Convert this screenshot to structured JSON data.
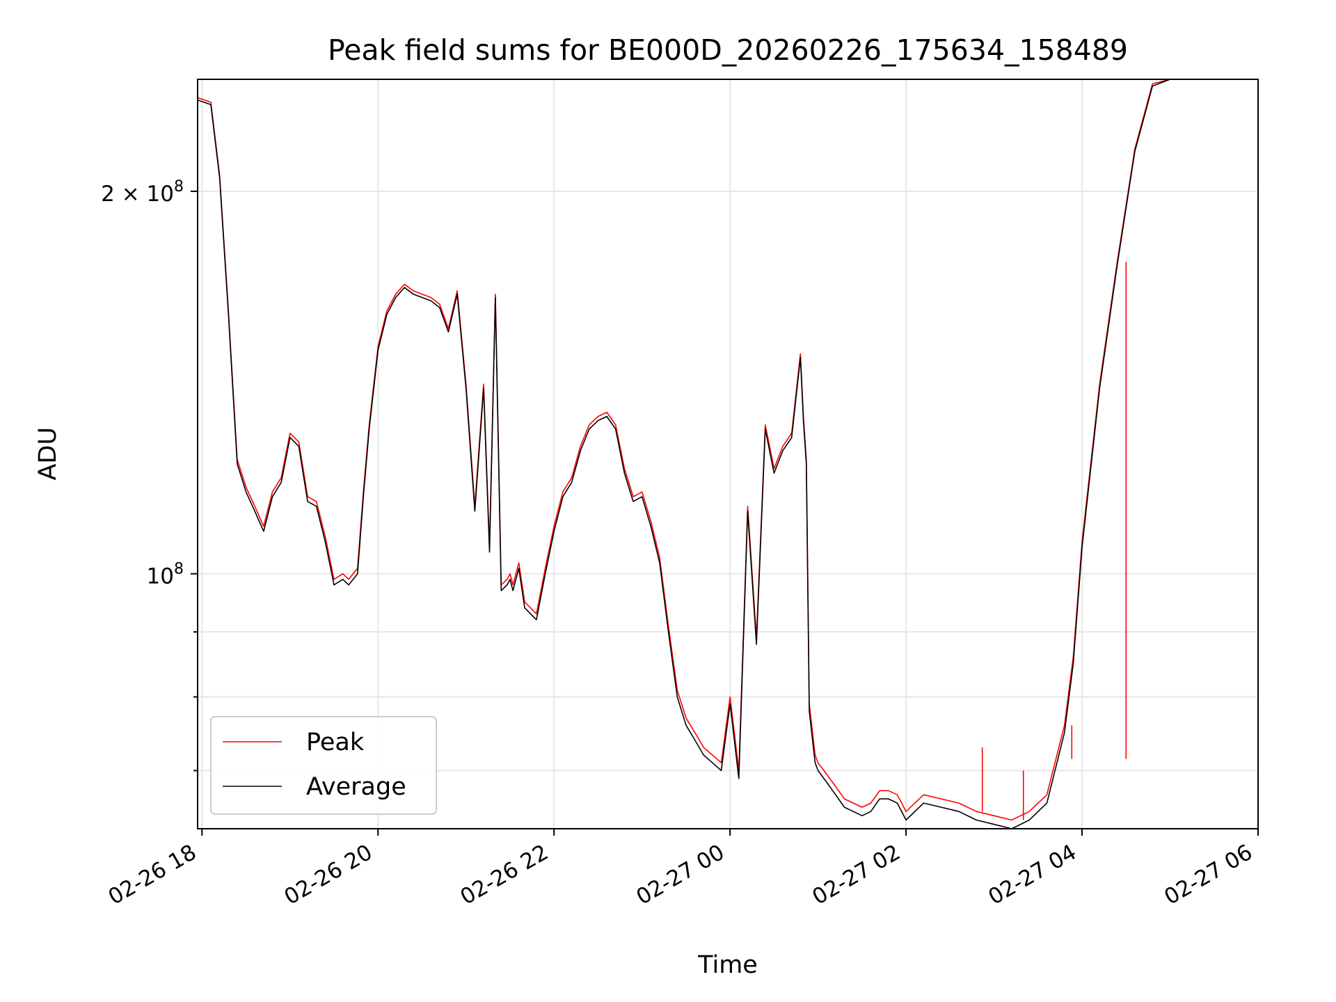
{
  "chart_data": {
    "type": "line",
    "title": "Peak field sums for BE000D_20260226_175634_158489",
    "xlabel": "Time",
    "ylabel": "ADU",
    "yscale": "log",
    "ylim": [
      63000000,
      245000000
    ],
    "xlim": [
      "02-26 17:57",
      "02-27 06:00"
    ],
    "grid": true,
    "legend_position": "lower-left",
    "x_ticks": [
      "02-26 18",
      "02-26 20",
      "02-26 22",
      "02-27 00",
      "02-27 02",
      "02-27 04",
      "02-27 06"
    ],
    "y_ticks": [
      {
        "value": 100000000,
        "label": "10",
        "exp": "8"
      },
      {
        "value": 200000000,
        "label": "2 × 10",
        "exp": "8"
      }
    ],
    "series": [
      {
        "name": "Peak",
        "color": "#ff0000"
      },
      {
        "name": "Average",
        "color": "#000000"
      }
    ],
    "x": [
      "02-26 17:57",
      "02-26 18:06",
      "02-26 18:12",
      "02-26 18:18",
      "02-26 18:24",
      "02-26 18:30",
      "02-26 18:36",
      "02-26 18:42",
      "02-26 18:48",
      "02-26 18:54",
      "02-26 19:00",
      "02-26 19:06",
      "02-26 19:12",
      "02-26 19:18",
      "02-26 19:24",
      "02-26 19:30",
      "02-26 19:36",
      "02-26 19:40",
      "02-26 19:46",
      "02-26 19:50",
      "02-26 19:54",
      "02-26 20:00",
      "02-26 20:06",
      "02-26 20:12",
      "02-26 20:18",
      "02-26 20:24",
      "02-26 20:30",
      "02-26 20:36",
      "02-26 20:42",
      "02-26 20:48",
      "02-26 20:54",
      "02-26 21:00",
      "02-26 21:06",
      "02-26 21:12",
      "02-26 21:16",
      "02-26 21:20",
      "02-26 21:24",
      "02-26 21:28",
      "02-26 21:30",
      "02-26 21:32",
      "02-26 21:36",
      "02-26 21:40",
      "02-26 21:48",
      "02-26 21:54",
      "02-26 22:00",
      "02-26 22:06",
      "02-26 22:12",
      "02-26 22:18",
      "02-26 22:24",
      "02-26 22:30",
      "02-26 22:36",
      "02-26 22:42",
      "02-26 22:48",
      "02-26 22:54",
      "02-26 23:00",
      "02-26 23:06",
      "02-26 23:12",
      "02-26 23:18",
      "02-26 23:24",
      "02-26 23:30",
      "02-26 23:36",
      "02-26 23:42",
      "02-26 23:48",
      "02-26 23:54",
      "02-27 00:00",
      "02-27 00:06",
      "02-27 00:12",
      "02-27 00:18",
      "02-27 00:24",
      "02-27 00:30",
      "02-27 00:36",
      "02-27 00:42",
      "02-27 00:48",
      "02-27 00:50",
      "02-27 00:52",
      "02-27 00:54",
      "02-27 00:58",
      "02-27 01:00",
      "02-27 01:04",
      "02-27 01:06",
      "02-27 01:12",
      "02-27 01:18",
      "02-27 01:24",
      "02-27 01:30",
      "02-27 01:36",
      "02-27 01:42",
      "02-27 01:48",
      "02-27 01:54",
      "02-27 02:00",
      "02-27 02:12",
      "02-27 02:24",
      "02-27 02:36",
      "02-27 02:48",
      "02-27 03:00",
      "02-27 03:12",
      "02-27 03:24",
      "02-27 03:36",
      "02-27 03:48",
      "02-27 03:54",
      "02-27 04:00",
      "02-27 04:12",
      "02-27 04:24",
      "02-27 04:36",
      "02-27 04:48",
      "02-27 05:00",
      "02-27 05:06",
      "02-27 05:12",
      "02-27 05:18",
      "02-27 05:24",
      "02-27 05:30",
      "02-27 05:36",
      "02-27 05:42",
      "02-27 05:48",
      "02-27 06:00"
    ],
    "average_values": [
      236000000,
      234000000,
      205000000,
      160000000,
      122000000,
      116000000,
      112000000,
      108000000,
      115000000,
      118000000,
      128000000,
      126000000,
      114000000,
      113000000,
      106000000,
      98000000,
      99000000,
      98000000,
      100000000,
      115000000,
      130000000,
      150000000,
      160000000,
      165000000,
      168000000,
      166000000,
      165000000,
      164000000,
      162000000,
      155000000,
      166000000,
      140000000,
      112000000,
      140000000,
      104000000,
      165000000,
      97000000,
      98000000,
      99000000,
      97000000,
      101000000,
      94000000,
      92000000,
      100000000,
      108000000,
      115000000,
      118000000,
      125000000,
      130000000,
      132000000,
      133000000,
      130000000,
      120000000,
      114000000,
      115000000,
      109000000,
      102000000,
      90000000,
      80000000,
      76000000,
      74000000,
      72000000,
      71000000,
      70000000,
      79000000,
      69000000,
      112000000,
      88000000,
      130000000,
      120000000,
      125000000,
      128000000,
      148000000,
      132000000,
      122000000,
      78000000,
      71000000,
      70000000,
      69000000,
      68500000,
      67000000,
      65500000,
      65000000,
      64500000,
      65000000,
      66500000,
      66500000,
      66000000,
      64000000,
      66000000,
      65500000,
      65000000,
      64000000,
      63500000,
      63000000,
      64000000,
      66000000,
      75000000,
      85000000,
      105000000,
      140000000,
      175000000,
      215000000,
      242000000,
      245000000,
      245000000,
      245000000,
      245000000,
      245000000,
      245000000,
      245000000,
      245000000,
      245000000,
      245000000
    ],
    "peak_values": [
      237000000,
      235000000,
      206000000,
      161000000,
      123000000,
      117000000,
      113000000,
      109000000,
      116000000,
      119000000,
      129000000,
      127000000,
      115000000,
      114000000,
      107000000,
      99000000,
      100000000,
      99000000,
      101000000,
      116000000,
      131000000,
      151000000,
      161000000,
      166000000,
      169000000,
      167000000,
      166000000,
      165000000,
      163000000,
      156000000,
      167000000,
      141000000,
      113000000,
      141000000,
      105000000,
      166000000,
      98000000,
      99000000,
      100000000,
      98000000,
      102000000,
      95000000,
      93000000,
      101000000,
      109000000,
      116000000,
      119000000,
      126000000,
      131000000,
      133000000,
      134000000,
      131000000,
      121000000,
      115000000,
      116000000,
      110000000,
      103000000,
      91000000,
      81000000,
      77000000,
      75000000,
      73000000,
      72000000,
      71000000,
      80000000,
      70000000,
      113000000,
      89000000,
      131000000,
      121000000,
      126000000,
      129000000,
      149000000,
      133000000,
      123000000,
      79000000,
      72000000,
      71000000,
      70000000,
      69500000,
      68000000,
      66500000,
      66000000,
      65500000,
      66000000,
      67500000,
      67500000,
      67000000,
      65000000,
      67000000,
      66500000,
      66000000,
      65000000,
      64500000,
      64000000,
      65000000,
      67000000,
      76000000,
      86000000,
      106000000,
      141000000,
      176000000,
      216000000,
      243000000,
      245000000,
      245000000,
      245000000,
      245000000,
      245000000,
      245000000,
      245000000,
      245000000,
      245000000,
      245000000
    ],
    "annotations": [
      {
        "type": "peak_spike",
        "x": "02-27 02:52",
        "value": 73000000
      },
      {
        "type": "peak_spike",
        "x": "02-27 03:20",
        "value": 70000000
      },
      {
        "type": "peak_spike",
        "x": "02-27 03:53",
        "value": 71500000
      },
      {
        "type": "peak_spike",
        "x": "02-27 04:30",
        "value": 71500000
      }
    ]
  }
}
